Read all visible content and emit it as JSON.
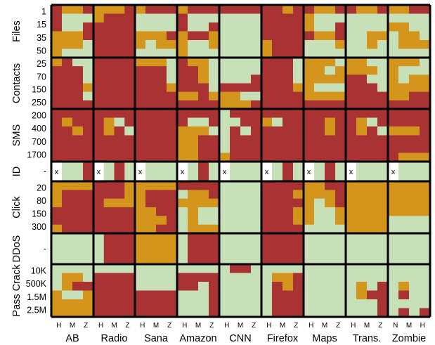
{
  "chart_data": {
    "type": "heatmap",
    "colors": {
      "red": "#a93333",
      "orange": "#d4951d",
      "green": "#c8e0b8",
      "white": "#ffffff",
      "grid": "#000000"
    },
    "legend_codes": {
      "R": "red",
      "O": "orange",
      "G": "green",
      "W": "white"
    },
    "apps": [
      {
        "name": "AB",
        "levels": [
          "H",
          "M",
          "Z"
        ]
      },
      {
        "name": "Radio",
        "levels": [
          "H",
          "M",
          "Z"
        ]
      },
      {
        "name": "Sana",
        "levels": [
          "H",
          "M",
          "Z"
        ]
      },
      {
        "name": "Amazon",
        "levels": [
          "H",
          "M",
          "Z"
        ]
      },
      {
        "name": "CNN",
        "levels": [
          "H",
          "M",
          "Z"
        ]
      },
      {
        "name": "Firefox",
        "levels": [
          "H",
          "M",
          "Z"
        ]
      },
      {
        "name": "Maps",
        "levels": [
          "H",
          "M",
          "Z"
        ]
      },
      {
        "name": "Trans.",
        "levels": [
          "H",
          "M",
          "Z"
        ]
      },
      {
        "name": "Zombie",
        "levels": [
          "N",
          "M",
          "H"
        ]
      }
    ],
    "row_groups": [
      {
        "label": "Files",
        "ticks": [
          "1",
          "15",
          "35",
          "50"
        ]
      },
      {
        "label": "Contacts",
        "ticks": [
          "25",
          "70",
          "150",
          "250"
        ]
      },
      {
        "label": "SMS",
        "ticks": [
          "200",
          "400",
          "700",
          "1700"
        ]
      },
      {
        "label": "ID",
        "ticks": [
          "-"
        ]
      },
      {
        "label": "Click",
        "ticks": [
          "20",
          "80",
          "150",
          "300"
        ]
      },
      {
        "label": "DDoS",
        "ticks": [
          "-"
        ]
      },
      {
        "label": "Pass Crack",
        "ticks": [
          "10K",
          "500K",
          "1.5M",
          "2.5M"
        ]
      }
    ],
    "id_marker": "x",
    "cells": [
      [
        [
          "ROOR",
          "OOOR",
          "ORRR",
          "ORRR",
          "RRRR",
          "RROR",
          "ROOR",
          "ROOR",
          "OORR"
        ],
        [
          "RGGG",
          "ORRR",
          "GGGG",
          "RGGG",
          "GGGG",
          "RRRR",
          "OGGG",
          "GGGG",
          "GGGG"
        ],
        [
          "RGGR",
          "RRRR",
          "GGGG",
          "RGGR",
          "GGGG",
          "RRRR",
          "OGGR",
          "GGGG",
          "OOGG"
        ],
        [
          "OOOR",
          "RRRR",
          "OOOR",
          "ORRO",
          "GGGG",
          "RRRR",
          "ROOR",
          "GGOO",
          "GOOG"
        ],
        [
          "OOOG",
          "RRRR",
          "OGOO",
          "OGGO",
          "GGGG",
          "ORRR",
          "GGGO",
          "GGOG",
          "GOOO"
        ],
        [
          "OGGG",
          "RRRR",
          "GGGG",
          "OGGG",
          "GGGG",
          "ORRR",
          "GGGG",
          "GGGG",
          "GGGG"
        ]
      ],
      [
        [
          "ORGG",
          "RRRR",
          "OOOG",
          "ROOG",
          "GGGG",
          "RRRG",
          "OOOG",
          "OOGG",
          "OOOG"
        ],
        [
          "RRRG",
          "RRRR",
          "RRRG",
          "RROG",
          "GGGG",
          "RRRG",
          "OOGO",
          "OOOG",
          "OGGG"
        ],
        [
          "RRRG",
          "RRRR",
          "RRRG",
          "RROG",
          "GGGR",
          "RRRG",
          "OOOO",
          "RRGG",
          "OGOO"
        ],
        [
          "RRRO",
          "RRRR",
          "RRRO",
          "RRRG",
          "RRRR",
          "RRRO",
          "OGGG",
          "RRRG",
          "OOOO"
        ],
        [
          "RRRG",
          "RRRR",
          "RRRR",
          "OORO",
          "OOGG",
          "RRRR",
          "OOOO",
          "RRRR",
          "OORR"
        ],
        [
          "RRRR",
          "RRRR",
          "RRRR",
          "RRRR",
          "OOOR",
          "RRRR",
          "RRRR",
          "RRRR",
          "RRRR"
        ]
      ],
      [
        [
          "RRRR",
          "RRRR",
          "RRRR",
          "RRRR",
          "GRRR",
          "RRRR",
          "RRRR",
          "RRRR",
          "RRRR"
        ],
        [
          "RORR",
          "ROGR",
          "RRRR",
          "RGGR",
          "GGRR",
          "OGRR",
          "RROR",
          "ROGR",
          "RRRR"
        ],
        [
          "RROR",
          "RORG",
          "RRRR",
          "OOOG",
          "GRGR",
          "RRRR",
          "RROR",
          "RORG",
          "OOOR"
        ],
        [
          "RRRR",
          "RRRR",
          "RRRR",
          "OORR",
          "GRRR",
          "RRRR",
          "RRRR",
          "RRRR",
          "RRRR"
        ],
        [
          "RRRR",
          "RRRR",
          "RRRR",
          "OORR",
          "GRRR",
          "RRRR",
          "RRRR",
          "RRRR",
          "RRRR"
        ],
        [
          "RRRR",
          "RRRR",
          "RRRR",
          "OORR",
          "ORRR",
          "RRRR",
          "RRRR",
          "RRRR",
          "ROOO"
        ]
      ],
      [
        [
          "WGGR",
          "WGRG",
          "WGGG",
          "WGRG",
          "WGGG",
          "WGRG",
          "WGRG",
          "WGGG",
          "WGGG"
        ]
      ],
      [
        [
          "OOOO",
          "RRRO",
          "OOOO",
          "RRRR",
          "GGGG",
          "RRRR",
          "OORR",
          "OOOO",
          "OOOO"
        ],
        [
          "ORRR",
          "RRRO",
          "ORRR",
          "GOOR",
          "GGGG",
          "RRRO",
          "OOOR",
          "OOOO",
          "OOOO"
        ],
        [
          "ORRR",
          "ROOO",
          "ORRR",
          "OOOO",
          "GGGG",
          "RRRR",
          "OGOR",
          "OOOO",
          "OOOO"
        ],
        [
          "RRRR",
          "RRRR",
          "OORR",
          "GOGG",
          "GGGG",
          "RRRO",
          "OGGO",
          "OOOO",
          "OOOO"
        ],
        [
          "RRRR",
          "RRRR",
          "OOOR",
          "GOGG",
          "GGGG",
          "RRRO",
          "OGGO",
          "OOOO",
          "GGGG"
        ],
        [
          "ORRR",
          "RRRR",
          "OORR",
          "GOOO",
          "GGGG",
          "RRRR",
          "GGGG",
          "OOOO",
          "GGGG"
        ]
      ],
      [
        [
          "GGGG",
          "GRRR",
          "OOOO",
          "GRRR",
          "GGGG",
          "RRRR",
          "GGGG",
          "GGGG",
          "GGGG"
        ],
        [
          "GGGG",
          "GRRR",
          "OOOO",
          "GRRR",
          "GGGG",
          "RRRR",
          "GGGG",
          "GGGG",
          "GGGG"
        ],
        [
          "GGGG",
          "GRRR",
          "OOOO",
          "GRRR",
          "GGGG",
          "RRRR",
          "GGGG",
          "GGGG",
          "GGGG"
        ]
      ],
      [
        [
          "GGGG",
          "GGGG",
          "GGGG",
          "GGGG",
          "GRRG",
          "GGGG",
          "GGGG",
          "GGGG",
          "GGGG"
        ],
        [
          "GOOG",
          "RRRR",
          "GGGG",
          "RRRR",
          "GGGG",
          "GOOR",
          "GGGG",
          "GGGG",
          "GGGG"
        ],
        [
          "GORR",
          "RRRR",
          "GGGG",
          "RRGR",
          "GGGG",
          "GROR",
          "GGGG",
          "GOGR",
          "GOGG"
        ],
        [
          "OGGO",
          "RRRR",
          "RRRR",
          "GGGR",
          "GGGG",
          "GRRR",
          "GGGG",
          "GORR",
          "GRGG"
        ],
        [
          "OOOO",
          "RRRR",
          "RRRR",
          "GGGR",
          "GGGG",
          "GRRR",
          "GGGG",
          "GGGR",
          "GGGG"
        ],
        [
          "OOOO",
          "RRRR",
          "RRRR",
          "GGGR",
          "GGGG",
          "GRRR",
          "GGGG",
          "GGGR",
          "GRGR"
        ]
      ]
    ]
  }
}
